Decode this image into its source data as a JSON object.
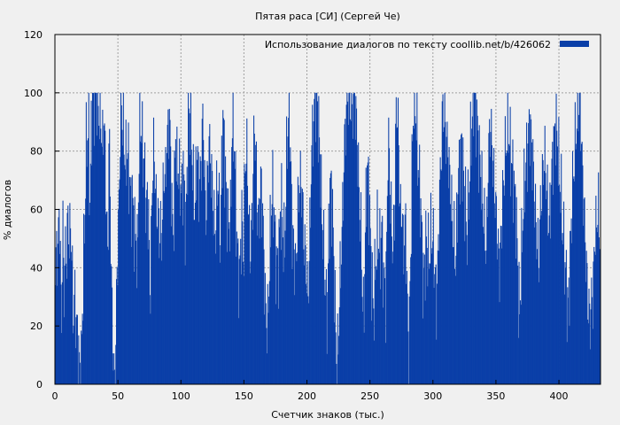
{
  "chart_data": {
    "type": "bar",
    "title": "Пятая раса [СИ] (Сергей Че)",
    "xlabel": "Счетчик знаков (тыс.)",
    "ylabel": "% диалогов",
    "xlim": [
      0,
      433
    ],
    "ylim": [
      0,
      120
    ],
    "xticks": [
      0,
      50,
      100,
      150,
      200,
      250,
      300,
      350,
      400
    ],
    "yticks": [
      0,
      20,
      40,
      60,
      80,
      100,
      120
    ],
    "grid": true,
    "legend_position": "top-right",
    "series": [
      {
        "name": "Использование диалогов по тексту  coollib.net/b/426062",
        "color": "#0a3fa8",
        "x_start": 0,
        "x_step": 0.5,
        "control_values": [
          30,
          52,
          40,
          66,
          37,
          25,
          55,
          30,
          48,
          44,
          60,
          46,
          58,
          40,
          22,
          30,
          24,
          18,
          12,
          5,
          3,
          22,
          40,
          58,
          79,
          86,
          88,
          60,
          85,
          96,
          97,
          99,
          100,
          98,
          92,
          94,
          88,
          80,
          95,
          75,
          60,
          40,
          88,
          62,
          30,
          15,
          0,
          5,
          35,
          50,
          65,
          98,
          93,
          88,
          81,
          75,
          80,
          78,
          70,
          62,
          65,
          58,
          52,
          50,
          42,
          65,
          95,
          88,
          82,
          78,
          72,
          60,
          65,
          55,
          28,
          50,
          75,
          80,
          72,
          58,
          62,
          50,
          55,
          48,
          62,
          74,
          68,
          82,
          85,
          94,
          80,
          62,
          50,
          65,
          88,
          72,
          76,
          68,
          70,
          62,
          78,
          60,
          55,
          72,
          93,
          94,
          86,
          78,
          65,
          60,
          70,
          82,
          68,
          70,
          75,
          90,
          86,
          62,
          58,
          71,
          84,
          79,
          72,
          66,
          55,
          50,
          62,
          72,
          60,
          48,
          75,
          90,
          85,
          68,
          66,
          52,
          58,
          53,
          88,
          92,
          80,
          64,
          48,
          40,
          36,
          50,
          58,
          40,
          70,
          82,
          76,
          60,
          46,
          48,
          60,
          82,
          88,
          75,
          58,
          55,
          65,
          70,
          58,
          46,
          28,
          22,
          20,
          35,
          50,
          62,
          66,
          60,
          45,
          42,
          40,
          48,
          60,
          62,
          50,
          45,
          60,
          82,
          90,
          93,
          76,
          55,
          48,
          44,
          38,
          52,
          66,
          68,
          70,
          64,
          52,
          46,
          42,
          30,
          35,
          52,
          74,
          86,
          90,
          98,
          99,
          94,
          86,
          79,
          60,
          55,
          40,
          38,
          20,
          35,
          56,
          70,
          66,
          54,
          38,
          20,
          5,
          12,
          28,
          40,
          50,
          66,
          82,
          90,
          98,
          99,
          100,
          96,
          91,
          100,
          99,
          92,
          84,
          70,
          60,
          50,
          32,
          20,
          45,
          66,
          75,
          68,
          54,
          40,
          30,
          25,
          38,
          46,
          52,
          48,
          44,
          55,
          42,
          36,
          28,
          46,
          82,
          79,
          62,
          52,
          46,
          55,
          86,
          97,
          88,
          68,
          56,
          62,
          45,
          52,
          55,
          32,
          10,
          25,
          50,
          80,
          96,
          100,
          90,
          81,
          72,
          67,
          58,
          40,
          36,
          44,
          50,
          46,
          42,
          48,
          52,
          50,
          44,
          36,
          28,
          40,
          60,
          72,
          84,
          96,
          92,
          88,
          82,
          80,
          72,
          66,
          58,
          52,
          48,
          40,
          58,
          70,
          76,
          82,
          80,
          72,
          64,
          58,
          50,
          62,
          74,
          86,
          92,
          100,
          98,
          94,
          88,
          80,
          76,
          70,
          62,
          56,
          50,
          44,
          70,
          82,
          90,
          84,
          76,
          70,
          62,
          55,
          48,
          40,
          46,
          58,
          66,
          74,
          80,
          86,
          88,
          84,
          78,
          74,
          72,
          65,
          60,
          48,
          30,
          25,
          38,
          52,
          62,
          70,
          76,
          80,
          86,
          90,
          84,
          78,
          70,
          60,
          52,
          48,
          40,
          58,
          66,
          72,
          78,
          76,
          68,
          60,
          54,
          62,
          72,
          80,
          84,
          90,
          86,
          80,
          72,
          66,
          58,
          50,
          44,
          38,
          30,
          26,
          38,
          52,
          64,
          72,
          80,
          86,
          92,
          96,
          100,
          88,
          72,
          64,
          52,
          42,
          30,
          25,
          22,
          28,
          30,
          40,
          55,
          52,
          62,
          55,
          48
        ]
      }
    ]
  }
}
